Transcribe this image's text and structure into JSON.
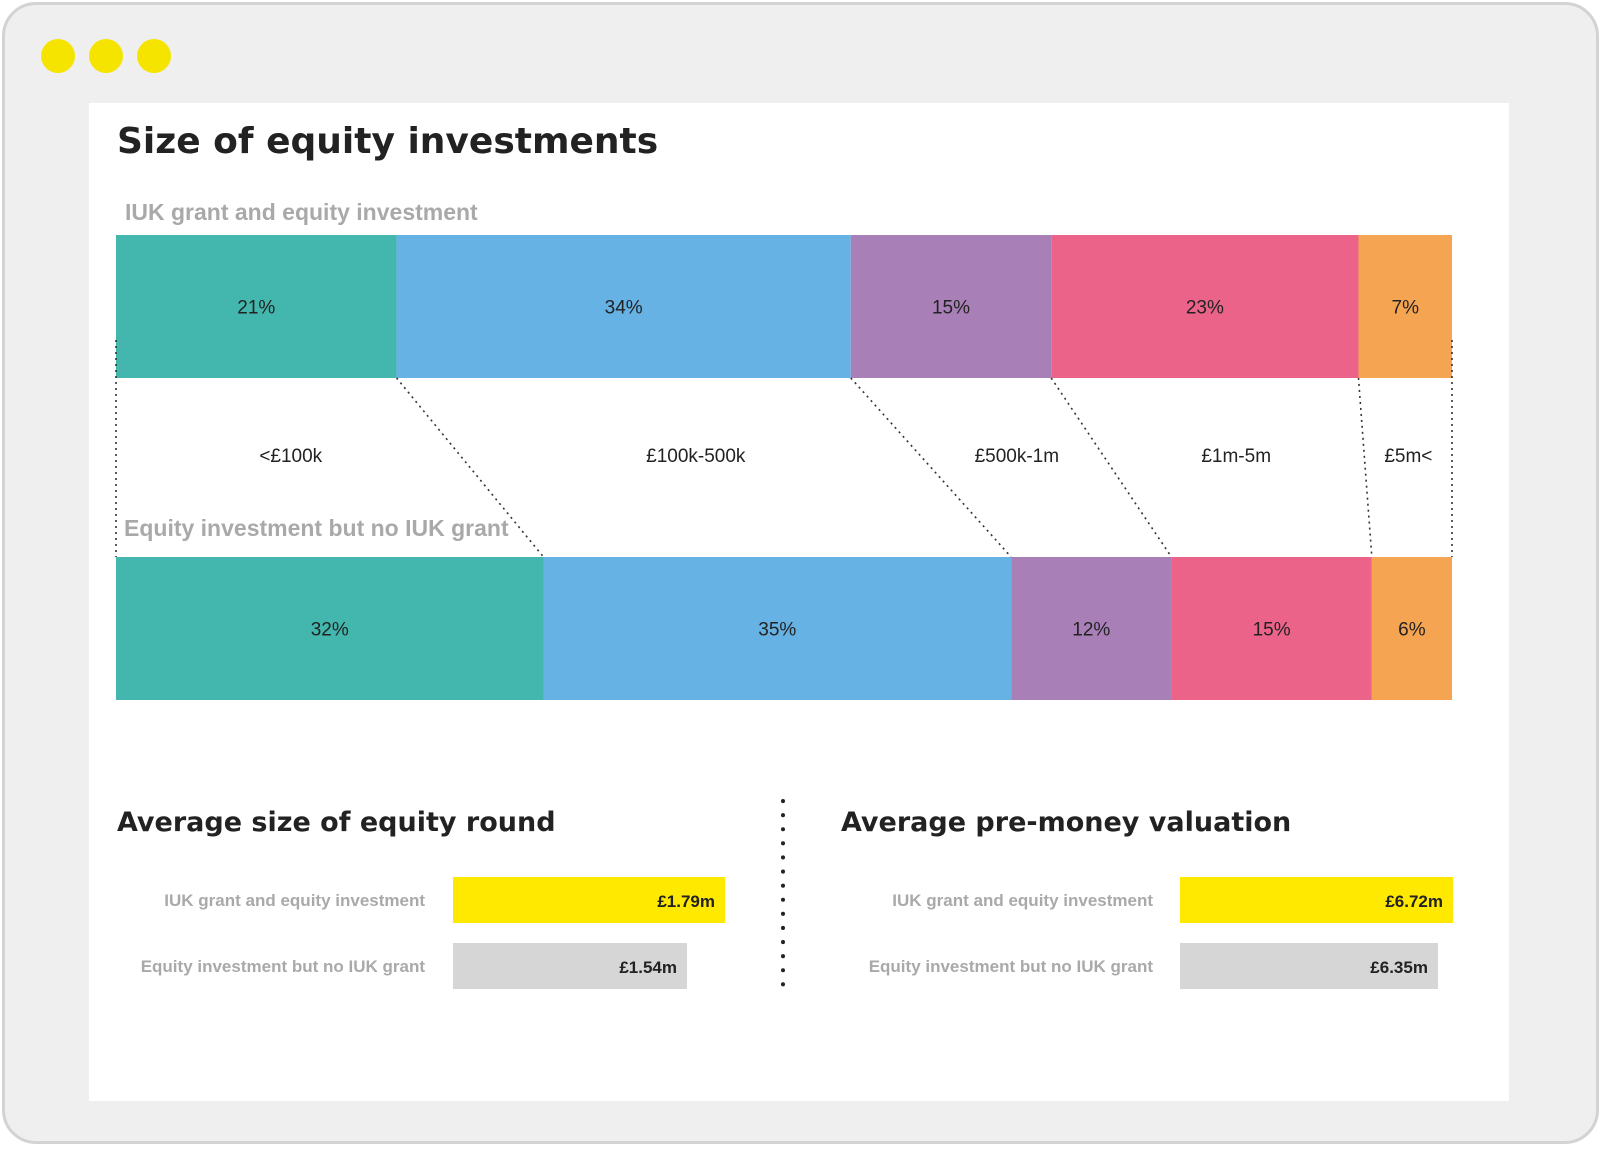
{
  "window": {
    "controls": [
      {
        "name": "window-dot-1",
        "color": "#f5e400"
      },
      {
        "name": "window-dot-2",
        "color": "#f5e400"
      },
      {
        "name": "window-dot-3",
        "color": "#f5e400"
      }
    ]
  },
  "chart_data": [
    {
      "type": "bar",
      "stacked": true,
      "orientation": "horizontal",
      "title": "Size of equity investments",
      "categories": [
        "<£100k",
        "£100k-500k",
        "£500k-1m",
        "£1m-5m",
        "£5m<"
      ],
      "colors": [
        "#43b7ae",
        "#66b2e4",
        "#a97fb8",
        "#eb6389",
        "#f5a451"
      ],
      "series": [
        {
          "name": "IUK grant and equity investment",
          "values": [
            21,
            34,
            15,
            23,
            7
          ],
          "labels": [
            "21%",
            "34%",
            "15%",
            "23%",
            "7%"
          ]
        },
        {
          "name": "Equity investment but no IUK grant",
          "values": [
            32,
            35,
            12,
            15,
            6
          ],
          "labels": [
            "32%",
            "35%",
            "12%",
            "15%",
            "6%"
          ]
        }
      ],
      "unit": "%"
    },
    {
      "type": "bar",
      "orientation": "horizontal",
      "title": "Average size of equity round",
      "categories": [
        "IUK grant and equity investment",
        "Equity investment but no IUK grant"
      ],
      "values": [
        1.79,
        1.54
      ],
      "labels": [
        "£1.79m",
        "£1.54m"
      ],
      "colors": [
        "#ffe900",
        "#d6d6d6"
      ],
      "unit": "£m"
    },
    {
      "type": "bar",
      "orientation": "horizontal",
      "title": "Average pre-money valuation",
      "categories": [
        "IUK grant and equity investment",
        "Equity investment but no IUK grant"
      ],
      "values": [
        6.72,
        6.35
      ],
      "labels": [
        "£6.72m",
        "£6.35m"
      ],
      "colors": [
        "#ffe900",
        "#d6d6d6"
      ],
      "unit": "£m"
    }
  ]
}
